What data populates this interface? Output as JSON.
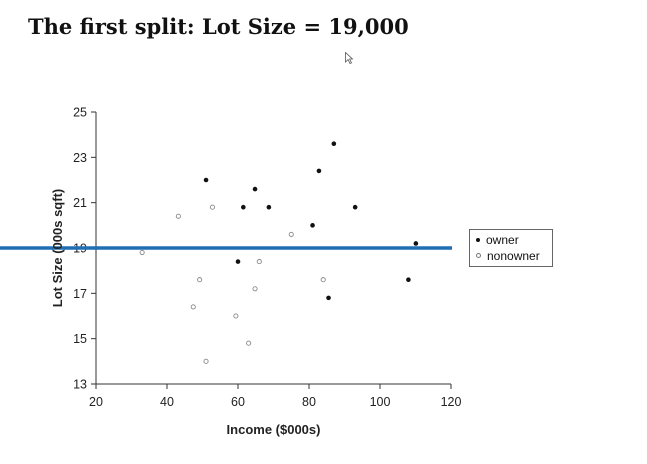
{
  "title": "The first split: Lot Size = 19,000",
  "chart_data": {
    "type": "scatter",
    "xlabel": "Income ($000s)",
    "ylabel": "Lot Size (000s sqft)",
    "xlim": [
      20,
      120
    ],
    "ylim": [
      13,
      25
    ],
    "xticks": [
      20,
      40,
      60,
      80,
      100,
      120
    ],
    "yticks": [
      13,
      15,
      17,
      19,
      21,
      23,
      25
    ],
    "grid": false,
    "legend_position": "right",
    "split_line": {
      "y": 19,
      "color": "#1f6fb5"
    },
    "series": [
      {
        "name": "owner",
        "marker": "filled",
        "color": "#111111",
        "points": [
          [
            51,
            22
          ],
          [
            61.5,
            20.8
          ],
          [
            64.8,
            21.6
          ],
          [
            68.7,
            20.8
          ],
          [
            82.8,
            22.4
          ],
          [
            87,
            23.6
          ],
          [
            93,
            20.8
          ],
          [
            81,
            20
          ],
          [
            110.1,
            19.2
          ],
          [
            108,
            17.6
          ],
          [
            85.5,
            16.8
          ],
          [
            60,
            18.4
          ]
        ]
      },
      {
        "name": "nonowner",
        "marker": "hollow",
        "color": "#888888",
        "points": [
          [
            52.8,
            20.8
          ],
          [
            43.2,
            20.4
          ],
          [
            75,
            19.6
          ],
          [
            33,
            18.8
          ],
          [
            49.2,
            17.6
          ],
          [
            66,
            18.4
          ],
          [
            84,
            17.6
          ],
          [
            64.8,
            17.2
          ],
          [
            47.4,
            16.4
          ],
          [
            59.4,
            16
          ],
          [
            63,
            14.8
          ],
          [
            51,
            14
          ]
        ]
      }
    ]
  }
}
